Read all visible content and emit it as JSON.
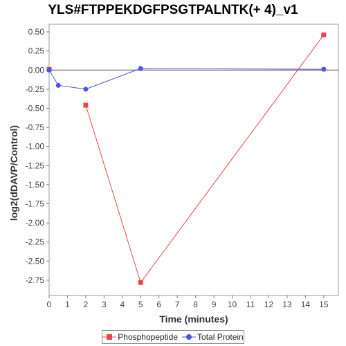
{
  "chart_data": {
    "type": "line",
    "title": "YLS#FTPPEKDGFPSGTPALNTK(+ 4)_v1",
    "xlabel": "Time (minutes)",
    "ylabel": "log2(dDAVP/Control)",
    "xlim": [
      0,
      15.8
    ],
    "ylim": [
      -2.95,
      0.6
    ],
    "xticks": [
      0,
      1,
      2,
      3,
      4,
      5,
      6,
      7,
      8,
      9,
      10,
      11,
      12,
      13,
      14,
      15
    ],
    "yticks": [
      0.5,
      0.25,
      0.0,
      -0.25,
      -0.5,
      -0.75,
      -1.0,
      -1.25,
      -1.5,
      -1.75,
      -2.0,
      -2.25,
      -2.5,
      -2.75
    ],
    "ytick_labels": [
      "0.50",
      "0.25",
      "0.00",
      "-0.25",
      "-0.50",
      "-0.75",
      "-1.00",
      "-1.25",
      "-1.50",
      "-1.75",
      "-2.00",
      "-2.25",
      "-2.50",
      "-2.75"
    ],
    "zero_line": true,
    "grid": false,
    "legend_position": "bottom",
    "series": [
      {
        "name": "Phosphopeptide",
        "color": "#e8474a",
        "marker": "square",
        "points": [
          {
            "x": 0,
            "y": 0.01,
            "connected": false
          },
          {
            "x": 2,
            "y": -0.46,
            "connected": true
          },
          {
            "x": 5,
            "y": -2.78,
            "connected": true
          },
          {
            "x": 15,
            "y": 0.46,
            "connected": true
          }
        ]
      },
      {
        "name": "Total Protein",
        "color": "#4f52e8",
        "marker": "circle",
        "points": [
          {
            "x": 0,
            "y": 0.0,
            "connected": true
          },
          {
            "x": 0.5,
            "y": -0.2,
            "connected": true
          },
          {
            "x": 2,
            "y": -0.25,
            "connected": true
          },
          {
            "x": 5,
            "y": 0.02,
            "connected": true
          },
          {
            "x": 15,
            "y": 0.01,
            "connected": true
          }
        ]
      }
    ]
  }
}
